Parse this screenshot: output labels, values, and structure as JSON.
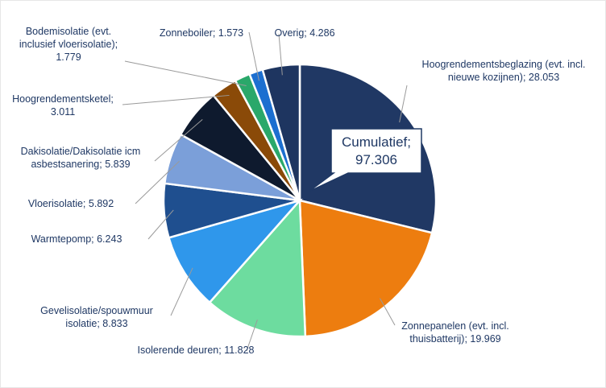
{
  "chart_data": {
    "type": "pie",
    "categories": [
      "Hoogrendementsbeglazing (evt. incl. nieuwe kozijnen);",
      "Zonnepanelen (evt. incl. thuisbatterij);",
      "Isolerende deuren;",
      "Gevelisolatie/spouwmuur isolatie;",
      "Warmtepomp;",
      "Vloerisolatie;",
      "Dakisolatie/Dakisolatie icm asbestsanering;",
      "Hoogrendementsketel;",
      "Bodemisolatie (evt. inclusief vloerisolatie);",
      "Zonneboiler;",
      "Overig;"
    ],
    "values": [
      28053,
      19969,
      11828,
      8833,
      6243,
      5892,
      5839,
      3011,
      1779,
      1573,
      4286
    ],
    "value_labels": [
      "28.053",
      "19.969",
      "11.828",
      "8.833",
      "6.243",
      "5.892",
      "5.839",
      "3.011",
      "1.779",
      "1.573",
      "4.286"
    ],
    "colors": [
      "#203864",
      "#ed7d0f",
      "#6ddc9f",
      "#2f97eb",
      "#1f4f8f",
      "#7b9fd9",
      "#0e1a2e",
      "#8a4a08",
      "#2aa86a",
      "#1c6fd0",
      "#1e3560"
    ],
    "annotation": "Cumulatief; 97.306"
  }
}
